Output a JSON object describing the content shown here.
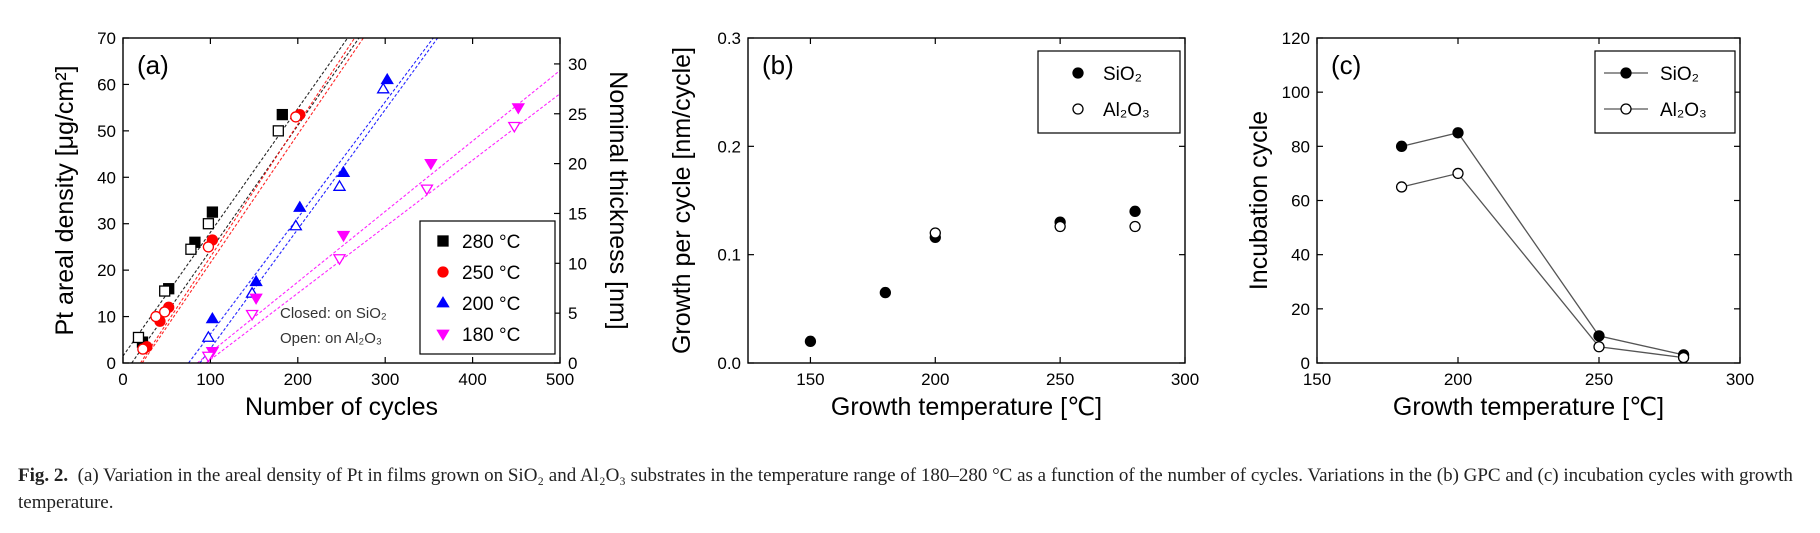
{
  "caption": {
    "label": "Fig. 2.",
    "text": "(a) Variation in the areal density of Pt in films grown on SiO₂ and Al₂O₃ substrates in the temperature range of 180–280 °C as a function of the number of cycles. Variations in the (b) GPC and (c) incubation cycles with growth temperature."
  },
  "chart_data": [
    {
      "panel": "(a)",
      "type": "scatter",
      "xlabel": "Number of cycles",
      "ylabel": "Pt areal density [μg/cm²]",
      "y2label": "Nominal thickness [nm]",
      "xlim": [
        0,
        500
      ],
      "ylim": [
        0,
        70
      ],
      "y2lim": [
        0,
        32.6
      ],
      "xticks": [
        "0",
        "100",
        "200",
        "300",
        "400",
        "500"
      ],
      "yticks": [
        "0",
        "10",
        "20",
        "30",
        "40",
        "50",
        "60",
        "70"
      ],
      "y2ticks": [
        "0",
        "5",
        "10",
        "15",
        "20",
        "25",
        "30"
      ],
      "legend": {
        "position": "bottom-right",
        "entries": [
          "280 °C",
          "250 °C",
          "200 °C",
          "180 °C"
        ]
      },
      "annotations": [
        "Closed: on SiO₂",
        "Open: on Al₂O₃"
      ],
      "series": [
        {
          "name": "280 °C",
          "color": "#000000",
          "marker": "square",
          "substrate": "SiO₂",
          "filled": true,
          "x": [
            20,
            50,
            80,
            100,
            180
          ],
          "y": [
            4.5,
            16,
            26,
            32.5,
            53.5
          ]
        },
        {
          "name": "280 °C",
          "color": "#000000",
          "marker": "square",
          "substrate": "Al₂O₃",
          "filled": false,
          "x": [
            20,
            50,
            80,
            100,
            180
          ],
          "y": [
            5.5,
            15.5,
            24.5,
            30,
            50
          ]
        },
        {
          "name": "250 °C",
          "color": "#ff0000",
          "marker": "circle",
          "substrate": "SiO₂",
          "filled": true,
          "x": [
            25,
            40,
            50,
            100,
            200
          ],
          "y": [
            3.5,
            9,
            12,
            26.5,
            53.5
          ]
        },
        {
          "name": "250 °C",
          "color": "#ff0000",
          "marker": "circle",
          "substrate": "Al₂O₃",
          "filled": false,
          "x": [
            25,
            40,
            50,
            100,
            200
          ],
          "y": [
            3,
            10,
            11,
            25,
            53
          ]
        },
        {
          "name": "200 °C",
          "color": "#0000ff",
          "marker": "triangle-up",
          "substrate": "SiO₂",
          "filled": true,
          "x": [
            100,
            150,
            200,
            250,
            300
          ],
          "y": [
            9.5,
            17.5,
            33.5,
            41,
            61
          ]
        },
        {
          "name": "200 °C",
          "color": "#0000ff",
          "marker": "triangle-up",
          "substrate": "Al₂O₃",
          "filled": false,
          "x": [
            100,
            150,
            200,
            250,
            300
          ],
          "y": [
            5.5,
            15,
            29.5,
            38,
            59
          ]
        },
        {
          "name": "180 °C",
          "color": "#ff00ff",
          "marker": "triangle-down",
          "substrate": "SiO₂",
          "filled": true,
          "x": [
            100,
            150,
            250,
            350,
            450
          ],
          "y": [
            2.5,
            14,
            27.5,
            43,
            55
          ]
        },
        {
          "name": "180 °C",
          "color": "#ff00ff",
          "marker": "triangle-down",
          "substrate": "Al₂O₃",
          "filled": false,
          "x": [
            100,
            150,
            250,
            350,
            450
          ],
          "y": [
            1.5,
            10.5,
            22.5,
            37.5,
            51
          ]
        }
      ],
      "fits": [
        {
          "color": "#000000",
          "x": [
            0,
            257
          ],
          "y": [
            1.5,
            70
          ]
        },
        {
          "color": "#000000",
          "x": [
            10,
            270
          ],
          "y": [
            0,
            70
          ]
        },
        {
          "color": "#ff0000",
          "x": [
            20,
            265
          ],
          "y": [
            0,
            70
          ]
        },
        {
          "color": "#ff0000",
          "x": [
            22,
            275
          ],
          "y": [
            0,
            70
          ]
        },
        {
          "color": "#0000ff",
          "x": [
            75,
            355
          ],
          "y": [
            0,
            70
          ]
        },
        {
          "color": "#0000ff",
          "x": [
            88,
            360
          ],
          "y": [
            0,
            70
          ]
        },
        {
          "color": "#ff00ff",
          "x": [
            85,
            500
          ],
          "y": [
            0,
            63
          ]
        },
        {
          "color": "#ff00ff",
          "x": [
            95,
            500
          ],
          "y": [
            0,
            58
          ]
        }
      ]
    },
    {
      "panel": "(b)",
      "type": "scatter",
      "xlabel": "Growth temperature [℃]",
      "ylabel": "Growth per cycle [nm/cycle]",
      "xlim": [
        125,
        300
      ],
      "ylim": [
        0,
        0.3
      ],
      "xticks": [
        "150",
        "200",
        "250",
        "300"
      ],
      "yticks": [
        "0.0",
        "0.1",
        "0.2",
        "0.3"
      ],
      "legend": {
        "position": "top-right",
        "entries": [
          "SiO₂",
          "Al₂O₃"
        ]
      },
      "series": [
        {
          "name": "SiO₂",
          "filled": true,
          "x": [
            150,
            180,
            200,
            250,
            280
          ],
          "y": [
            0.02,
            0.065,
            0.116,
            0.13,
            0.14
          ]
        },
        {
          "name": "Al₂O₃",
          "filled": false,
          "x": [
            200,
            250,
            280
          ],
          "y": [
            0.12,
            0.126,
            0.126
          ]
        }
      ]
    },
    {
      "panel": "(c)",
      "type": "line",
      "xlabel": "Growth temperature [℃]",
      "ylabel": "Incubation cycle",
      "xlim": [
        150,
        300
      ],
      "ylim": [
        0,
        120
      ],
      "xticks": [
        "150",
        "200",
        "250",
        "300"
      ],
      "yticks": [
        "0",
        "20",
        "40",
        "60",
        "80",
        "100",
        "120"
      ],
      "legend": {
        "position": "top-right",
        "entries": [
          "SiO₂",
          "Al₂O₃"
        ]
      },
      "series": [
        {
          "name": "SiO₂",
          "filled": true,
          "x": [
            180,
            200,
            250,
            280
          ],
          "y": [
            80,
            85,
            10,
            3
          ]
        },
        {
          "name": "Al₂O₃",
          "filled": false,
          "x": [
            180,
            200,
            250,
            280
          ],
          "y": [
            65,
            70,
            6,
            2
          ]
        }
      ]
    }
  ]
}
